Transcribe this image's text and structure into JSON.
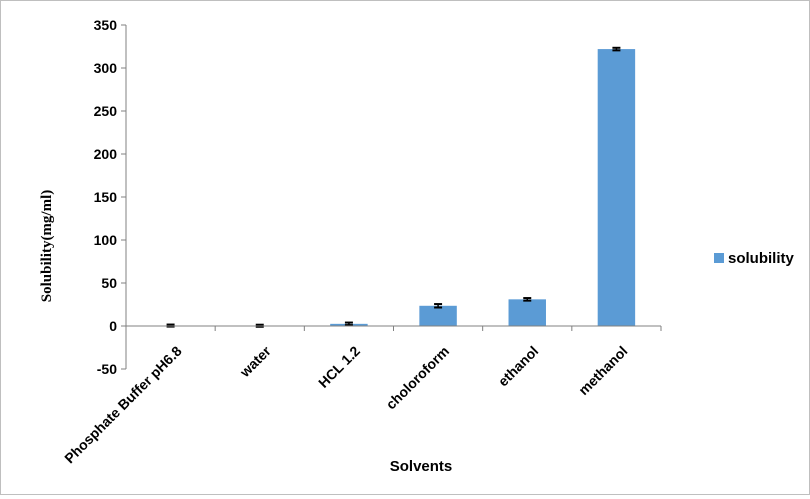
{
  "chart_data": {
    "type": "bar",
    "categories": [
      "Phosphate Buffer pH6.8",
      "water",
      "HCL 1.2",
      "choloroform",
      "ethanol",
      "methanol"
    ],
    "series": [
      {
        "name": "solubility",
        "values": [
          0.5,
          0.3,
          2.5,
          23.5,
          31,
          322
        ],
        "errors": [
          1.2,
          1.2,
          1.5,
          2,
          1.5,
          1.5
        ]
      }
    ],
    "xlabel": "Solvents",
    "ylabel": "Solubility(mg/ml)",
    "ylim": [
      -50,
      350
    ],
    "yticks": [
      -50,
      0,
      50,
      100,
      150,
      200,
      250,
      300,
      350
    ],
    "legend_position": "right",
    "grid": false,
    "colors": {
      "bar": "#5b9bd5",
      "error_bar": "#000000",
      "axis": "#808080"
    }
  }
}
